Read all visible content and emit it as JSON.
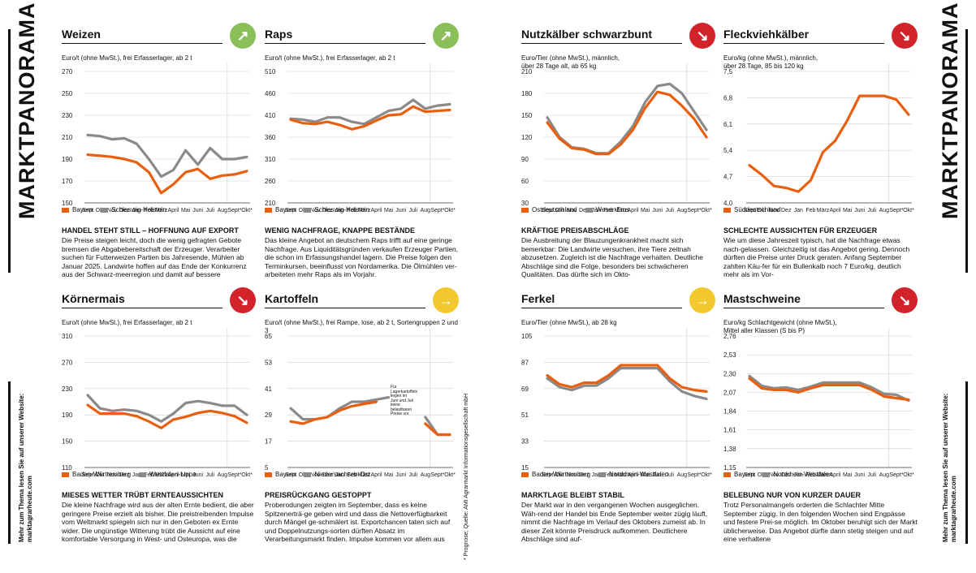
{
  "side_title": "MARKTPANORAMA",
  "side_note": {
    "line1": "Mehr zum Thema lesen Sie auf unserer Website:",
    "line2": "marktagrarheute.com"
  },
  "footnote": "* Prognose; Quelle: AMI Agrarmarkt Informationsgesellschaft mbH",
  "colors": {
    "orange": "#e8600f",
    "gray": "#8a8a8a",
    "up": "#8bbf5a",
    "down": "#d2232a",
    "flat": "#f2c82d"
  },
  "x_labels": [
    "Sept\n2023",
    "Okt",
    "Nov",
    "Dez",
    "Jan\n2024",
    "Feb",
    "März",
    "April",
    "Mai",
    "Juni",
    "Juli",
    "Aug",
    "Sept*",
    "Okt*"
  ],
  "panels": [
    {
      "id": "weizen",
      "title": "Weizen",
      "trend": "up",
      "arrow_glyph": "↗",
      "unit": "Euro/t (ohne MwSt.), frei Erfasserlager, ab 2 t",
      "chart_data": {
        "type": "line",
        "y_ticks": [
          "270",
          "250",
          "230",
          "210",
          "190",
          "170",
          "150"
        ],
        "ylim": [
          150,
          270
        ],
        "series": [
          {
            "name": "Bayern",
            "color": "orange",
            "values": [
              194,
              193,
              192,
              190,
              187,
              178,
              159,
              167,
              178,
              181,
              172,
              175,
              176,
              179
            ]
          },
          {
            "name": "Schleswig-Holstein",
            "color": "gray",
            "values": [
              212,
              211,
              208,
              209,
              204,
              190,
              174,
              180,
              198,
              185,
              200,
              190,
              190,
              192
            ]
          }
        ]
      },
      "legend": [
        "Bayern",
        "Schleswig-Holstein"
      ],
      "head": "HANDEL STEHT STILL – HOFFNUNG AUF EXPORT",
      "body": "Die Preise steigen leicht, doch die wenig gefragten Gebote bremsen die Abgabebereitschaft der Erzeuger. Verarbeiter suchen für Futterweizen Partien bis Jahresende, Mühlen ab Januar 2025. Landwirte hoffen auf das Ende der Konkurrenz aus der Schwarz-meerregion und damit auf bessere Exportchancen und Preise."
    },
    {
      "id": "raps",
      "title": "Raps",
      "trend": "up",
      "arrow_glyph": "↗",
      "unit": "Euro/t (ohne MwSt.), frei Erfasserlager, ab 2 t",
      "chart_data": {
        "type": "line",
        "y_ticks": [
          "510",
          "460",
          "410",
          "360",
          "310",
          "260",
          "210"
        ],
        "ylim": [
          210,
          510
        ],
        "series": [
          {
            "name": "Bayern",
            "color": "orange",
            "values": [
              400,
              392,
              390,
              395,
              388,
              378,
              385,
              398,
              410,
              412,
              430,
              418,
              420,
              422
            ]
          },
          {
            "name": "Schleswig-Holstein",
            "color": "gray",
            "values": [
              402,
              400,
              395,
              405,
              405,
              395,
              390,
              405,
              420,
              425,
              445,
              425,
              432,
              435
            ]
          }
        ]
      },
      "legend": [
        "Bayern",
        "Schleswig-Holstein"
      ],
      "head": "WENIG NACHFRAGE, KNAPPE BESTÄNDE",
      "body": "Das kleine Angebot an deutschem Raps trifft auf eine geringe Nachfrage. Aus Liquiditätsgründen verkaufen Erzeuger Partien, die schon im Erfassungshandel lagern. Die Preise folgen den Terminkursen, beeinflusst von Nordamerika. Die Ölmühlen ver-arbeiteten mehr Raps als im Vorjahr."
    },
    {
      "id": "nutzkaelber",
      "title": "Nutzkälber schwarzbunt",
      "trend": "down",
      "arrow_glyph": "↘",
      "unit": "Euro/Tier (ohne MwSt.), männlich,\nüber 28 Tage alt, ab 65 kg",
      "chart_data": {
        "type": "line",
        "y_ticks": [
          "210",
          "180",
          "150",
          "120",
          "90",
          "60",
          "30"
        ],
        "ylim": [
          30,
          210
        ],
        "series": [
          {
            "name": "Ostdeutschland",
            "color": "orange",
            "values": [
              140,
              118,
              105,
              103,
              97,
              97,
              110,
              130,
              160,
              182,
              178,
              163,
              145,
              120
            ]
          },
          {
            "name": "Weser-Ems",
            "color": "gray",
            "values": [
              147,
              120,
              106,
              104,
              98,
              98,
              114,
              135,
              168,
              190,
              193,
              180,
              155,
              130
            ]
          }
        ]
      },
      "legend": [
        "Ostdeutschland",
        "Weser-Ems"
      ],
      "head": "KRÄFTIGE PREISABSCHLÄGE",
      "body": "Die Ausbreitung der Blauzungenkrankheit macht sich bemerkbar: Die Landwirte versuchen, ihre Tiere zeitnah abzusetzen. Zugleich ist die Nachfrage verhalten. Deutliche Abschläge sind die Folge, besonders bei schwächeren Qualitäten. Das dürfte sich im Okto-"
    },
    {
      "id": "fleckvieh",
      "title": "Fleckviehkälber",
      "trend": "down",
      "arrow_glyph": "↘",
      "unit": "Euro/kg (ohne MwSt.), männlich,\nüber 28 Tage, 85 bis 120 kg",
      "chart_data": {
        "type": "line",
        "y_ticks": [
          "7,5",
          "6,8",
          "6,1",
          "5,4",
          "4,7",
          "4,0"
        ],
        "ylim": [
          4.0,
          7.5
        ],
        "series": [
          {
            "name": "Süddeutschland",
            "color": "orange",
            "values": [
              5.0,
              4.75,
              4.45,
              4.4,
              4.3,
              4.6,
              5.35,
              5.65,
              6.2,
              6.85,
              6.85,
              6.85,
              6.75,
              6.35
            ]
          }
        ]
      },
      "legend": [
        "Süddeutschland"
      ],
      "head": "SCHLECHTE AUSSICHTEN FÜR ERZEUGER",
      "body": "Wie um diese Jahreszeit typisch, hat die Nachfrage etwas nach-gelassen. Gleichzeitig ist das Angebot gering. Dennoch dürften die Preise unter Druck geraten. Anfang September zahlten Käu-fer für ein Bullenkalb noch 7 Euro/kg, deutlich mehr als im Vor-"
    },
    {
      "id": "koernermais",
      "title": "Körnermais",
      "trend": "down",
      "arrow_glyph": "↘",
      "unit": "Euro/t (ohne MwSt.), frei Erfasserlager, ab 2 t",
      "chart_data": {
        "type": "line",
        "y_ticks": [
          "310",
          "270",
          "230",
          "190",
          "150",
          "110"
        ],
        "ylim": [
          110,
          310
        ],
        "series": [
          {
            "name": "Baden-Württemberg",
            "color": "orange",
            "values": [
              205,
              192,
              192,
              192,
              188,
              180,
              170,
              183,
              187,
              193,
              196,
              193,
              188,
              178
            ]
          },
          {
            "name": "Westfalen-Lippe",
            "color": "gray",
            "values": [
              220,
              200,
              196,
              198,
              196,
              190,
              180,
              192,
              208,
              211,
              208,
              204,
              204,
              190
            ]
          }
        ]
      },
      "legend": [
        "Baden-Württemberg",
        "Westfalen-Lippe"
      ],
      "head": "MIESES WETTER TRÜBT ERNTEAUSSICHTEN",
      "body": "Die kleine Nachfrage wird aus der alten Ernte bedient, die aber geringere Preise erzielt als bisher. Die preistreibenden Impulse vom Weltmarkt spiegeln sich nur in den Geboten ex Ernte wider. Die ungünstige Witterung trübt die Aussicht auf eine komfortable Versorgung in West- und Osteuropa, was die Preise stützt."
    },
    {
      "id": "kartoffeln",
      "title": "Kartoffeln",
      "trend": "flat",
      "arrow_glyph": "→",
      "unit": "Euro/t (ohne MwSt.), frei Rampe, lose, ab 2 t, Sortengruppen 2 und 3",
      "annotation": "Für Lagerkartoffeln liegen im Juni und Juli keine belastbaren Preise vor.",
      "chart_data": {
        "type": "line",
        "y_ticks": [
          "65",
          "53",
          "41",
          "29",
          "17",
          "5"
        ],
        "ylim": [
          5,
          65
        ],
        "series": [
          {
            "name": "Bayern",
            "color": "orange",
            "values": [
              26,
              25,
              27,
              28,
              31,
              33,
              34,
              35,
              null,
              null,
              null,
              25,
              20,
              20
            ]
          },
          {
            "name": "Niedersachsen-Ost",
            "color": "gray",
            "values": [
              32,
              27,
              27,
              28,
              32,
              35,
              35,
              36,
              37,
              null,
              null,
              28,
              20,
              20
            ]
          }
        ]
      },
      "legend": [
        "Bayern",
        "Niedersachsen-Ost"
      ],
      "head": "PREISRÜCKGANG GESTOPPT",
      "body": "Proberodungen zeigten im September, dass es keine Spitzenerträ-ge geben wird und dass die Nettoverfügbarkeit durch Mängel ge-schmälert ist. Exportchancen taten sich auf und Doppelnutzungs-sorten dürften Absatz im Verarbeitungsmarkt finden. Impulse kommen vor allem aus dem Benelux-Raum."
    },
    {
      "id": "ferkel",
      "title": "Ferkel",
      "trend": "flat",
      "arrow_glyph": "→",
      "unit": "Euro/Tier (ohne MwSt.), ab 28 kg",
      "chart_data": {
        "type": "line",
        "y_ticks": [
          "105",
          "87",
          "69",
          "51",
          "33",
          "15"
        ],
        "ylim": [
          15,
          105
        ],
        "series": [
          {
            "name": "Baden-Württemberg",
            "color": "orange",
            "values": [
              78,
              72,
              70,
              73,
              73,
              78,
              85,
              85,
              85,
              85,
              76,
              70,
              68,
              67
            ]
          },
          {
            "name": "Nordrhein-Westfalen",
            "color": "gray",
            "values": [
              76,
              70,
              68,
              71,
              71,
              76,
              83,
              83,
              83,
              83,
              74,
              67,
              64,
              62
            ]
          }
        ]
      },
      "legend": [
        "Baden-Württemberg",
        "Nordrhein-Westfalen"
      ],
      "head": "MARKTLAGE BLEIBT STABIL",
      "body": "Der Markt war in den vergangenen Wochen ausgeglichen. Wäh-rend der Handel bis Ende September weiter zügig läuft, nimmt die Nachfrage im Verlauf des Oktobers zumeist ab. In dieser Zeit könnte Preisdruck aufkommen. Deutlichere Abschläge sind auf-"
    },
    {
      "id": "mastschweine",
      "title": "Mastschweine",
      "trend": "down",
      "arrow_glyph": "↘",
      "unit": "Euro/kg Schlachtgewicht (ohne MwSt.),\nMittel aller Klassen (S bis P)",
      "chart_data": {
        "type": "line",
        "y_ticks": [
          "2,76",
          "2,53",
          "2,30",
          "2,07",
          "1,84",
          "1,61",
          "1,38",
          "1,15"
        ],
        "ylim": [
          1.15,
          2.76
        ],
        "series": [
          {
            "name": "Bayern",
            "color": "orange",
            "values": [
              2.24,
              2.12,
              2.1,
              2.1,
              2.07,
              2.12,
              2.16,
              2.16,
              2.16,
              2.16,
              2.1,
              2.02,
              2.0,
              1.98
            ]
          },
          {
            "name": "Nordrhein-Westfalen",
            "color": "gray",
            "values": [
              2.27,
              2.15,
              2.12,
              2.13,
              2.1,
              2.14,
              2.19,
              2.19,
              2.19,
              2.19,
              2.13,
              2.05,
              2.04,
              1.97
            ]
          }
        ]
      },
      "legend": [
        "Bayern",
        "Nordrhein-Westfalen"
      ],
      "head": "BELEBUNG NUR VON KURZER DAUER",
      "body": "Trotz Personalmangels orderten die Schlachter Mitte September zügig. In den folgenden Wochen sind Engpässe und festere Prei-se möglich. Im Oktober beruhigt sich der Markt üblicherweise. Das Angebot dürfte dann stetig steigen und auf eine verhaltene"
    }
  ]
}
